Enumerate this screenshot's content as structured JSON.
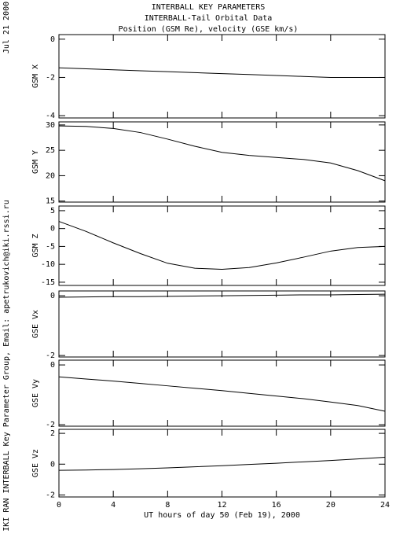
{
  "header": {
    "title_lines": [
      "INTERBALL KEY PARAMETERS",
      "INTERBALL-Tail Orbital Data",
      "Position (GSM Re), velocity (GSE km/s)"
    ]
  },
  "side_date": "Jul 21 2000",
  "credit": "IKI RAN INTERBALL Key Parameter Group, Email: apetrukovich@iki.rssi.ru",
  "chart_data": [
    {
      "type": "line",
      "y_label": "GSM X",
      "x": [
        0,
        2,
        4,
        6,
        8,
        10,
        12,
        14,
        16,
        18,
        20,
        22,
        24
      ],
      "values": [
        -1.5,
        -1.55,
        -1.6,
        -1.65,
        -1.7,
        -1.75,
        -1.8,
        -1.85,
        -1.9,
        -1.95,
        -2.0,
        -2.0,
        -2.0
      ],
      "ylim": [
        -4.12,
        0.24
      ],
      "yticks": [
        0,
        -2,
        -4
      ]
    },
    {
      "type": "line",
      "y_label": "GSM Y",
      "x": [
        0,
        2,
        4,
        6,
        8,
        10,
        12,
        14,
        16,
        18,
        20,
        22,
        24
      ],
      "values": [
        29.8,
        29.7,
        29.3,
        28.5,
        27.2,
        25.8,
        24.6,
        24.0,
        23.6,
        23.2,
        22.5,
        21.0,
        19.0
      ],
      "ylim": [
        14.8,
        30.6
      ],
      "yticks": [
        30,
        25,
        20,
        15
      ]
    },
    {
      "type": "line",
      "y_label": "GSM Z",
      "x": [
        0,
        2,
        4,
        6,
        8,
        10,
        12,
        14,
        16,
        18,
        20,
        22,
        24
      ],
      "values": [
        2,
        -0.8,
        -4,
        -7,
        -9.7,
        -11.1,
        -11.4,
        -10.9,
        -9.6,
        -8.0,
        -6.3,
        -5.3,
        -5.0
      ],
      "ylim": [
        -15.9,
        6.3
      ],
      "yticks": [
        5,
        0,
        -5,
        -10,
        -15
      ]
    },
    {
      "type": "line",
      "y_label": "GSE Vx",
      "x": [
        0,
        2,
        4,
        6,
        8,
        10,
        12,
        14,
        16,
        18,
        20,
        22,
        24
      ],
      "values": [
        -0.05,
        -0.04,
        -0.03,
        -0.03,
        -0.02,
        -0.01,
        0,
        0.01,
        0.02,
        0.03,
        0.03,
        0.04,
        0.05
      ],
      "ylim": [
        -2.05,
        0.16
      ],
      "yticks": [
        0,
        -2
      ]
    },
    {
      "type": "line",
      "y_label": "GSE Vy",
      "x": [
        0,
        2,
        4,
        6,
        8,
        10,
        12,
        14,
        16,
        18,
        20,
        22,
        24
      ],
      "values": [
        -0.4,
        -0.47,
        -0.54,
        -0.62,
        -0.7,
        -0.78,
        -0.86,
        -0.95,
        -1.04,
        -1.13,
        -1.24,
        -1.36,
        -1.55
      ],
      "ylim": [
        -2.05,
        0.16
      ],
      "yticks": [
        0,
        -2
      ]
    },
    {
      "type": "line",
      "y_label": "GSE Vz",
      "x": [
        0,
        2,
        4,
        6,
        8,
        10,
        12,
        14,
        16,
        18,
        20,
        22,
        24
      ],
      "values": [
        -0.4,
        -0.38,
        -0.35,
        -0.3,
        -0.24,
        -0.17,
        -0.1,
        -0.02,
        0.06,
        0.15,
        0.24,
        0.34,
        0.45
      ],
      "ylim": [
        -2.13,
        2.26
      ],
      "yticks": [
        2,
        0,
        -2
      ],
      "xlim": [
        0,
        24
      ],
      "xticks": [
        0,
        4,
        8,
        12,
        16,
        20,
        24
      ],
      "x_label": "UT hours of day  50 (Feb 19), 2000"
    }
  ]
}
